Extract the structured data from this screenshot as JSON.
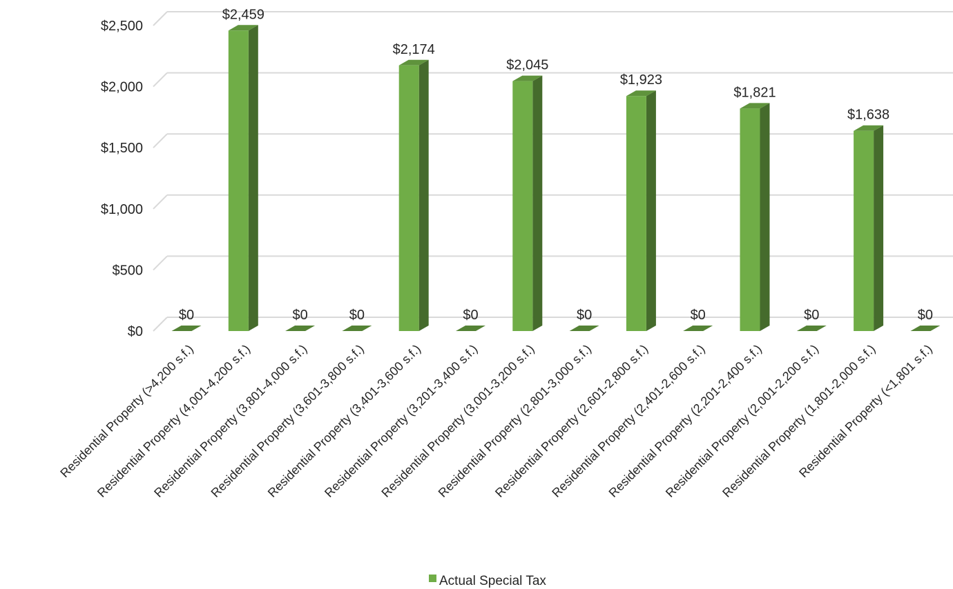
{
  "chart_data": {
    "type": "bar",
    "title": "",
    "xlabel": "",
    "ylabel": "",
    "categories": [
      "Residential Property (>4,200 s.f.)",
      "Residential Property (4,001-4,200 s.f.)",
      "Residential Property (3,801-4,000 s.f.)",
      "Residential Property (3,601-3,800 s.f.)",
      "Residential Property (3,401-3,600 s.f.)",
      "Residential Property (3,201-3,400 s.f.)",
      "Residential Property (3,001-3,200 s.f.)",
      "Residential Property (2,801-3,000 s.f.)",
      "Residential Property (2,601-2,800 s.f.)",
      "Residential Property (2,401-2,600 s.f.)",
      "Residential Property (2,201-2,400 s.f.)",
      "Residential Property (2,001-2,200 s.f.)",
      "Residential Property (1,801-2,000 s.f.)",
      "Residential Property (<1,801 s.f.)"
    ],
    "series": [
      {
        "name": "Actual Special Tax",
        "color": "#70ad47",
        "values": [
          0,
          2459,
          0,
          0,
          2174,
          0,
          2045,
          0,
          1923,
          0,
          1821,
          0,
          1638,
          0
        ],
        "data_labels": [
          "$0",
          "$2,459",
          "$0",
          "$0",
          "$2,174",
          "$0",
          "$2,045",
          "$0",
          "$1,923",
          "$0",
          "$1,821",
          "$0",
          "$1,638",
          "$0"
        ]
      }
    ],
    "ylim": [
      0,
      2500
    ],
    "y_ticks": [
      0,
      500,
      1000,
      1500,
      2000,
      2500
    ],
    "y_tick_labels": [
      "$0",
      "$500",
      "$1,000",
      "$1,500",
      "$2,000",
      "$2,500"
    ],
    "grid": true,
    "legend_position": "bottom",
    "style": "3d-column"
  }
}
